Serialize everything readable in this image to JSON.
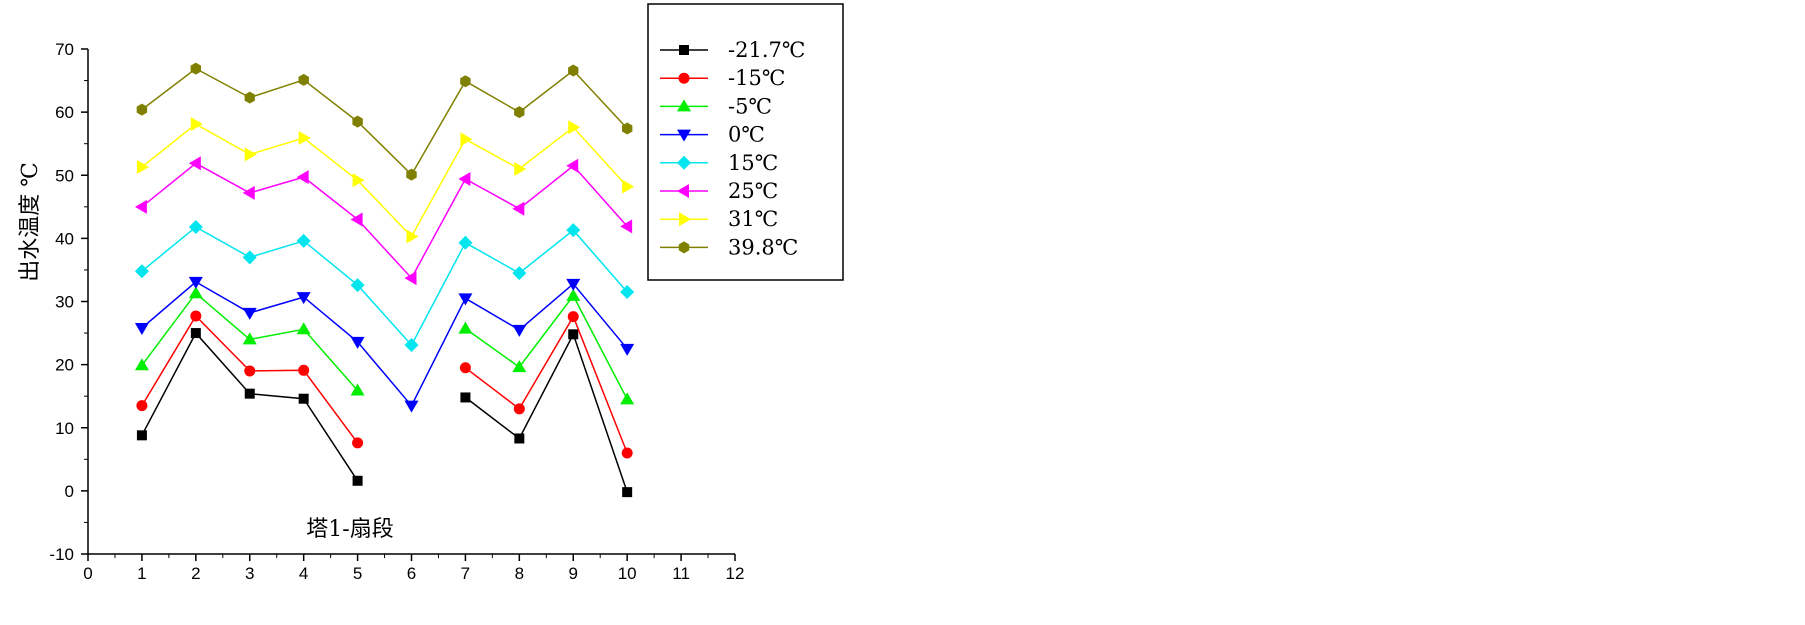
{
  "chart_data": {
    "type": "line",
    "xlabel": "塔1-扇段",
    "ylabel": "出水温度 ℃",
    "xlim": [
      0,
      12
    ],
    "ylim": [
      -10,
      70
    ],
    "x_ticks": [
      "0",
      "1",
      "2",
      "3",
      "4",
      "5",
      "6",
      "7",
      "8",
      "9",
      "10",
      "11",
      "12"
    ],
    "y_ticks": [
      "-10",
      "0",
      "10",
      "20",
      "30",
      "40",
      "50",
      "60",
      "70"
    ],
    "grid": false,
    "legend_position": "top-right",
    "series": [
      {
        "name": "-21.7℃",
        "color": "#000000",
        "marker": "square",
        "x": [
          1,
          2,
          3,
          4,
          5,
          7,
          8,
          9,
          10
        ],
        "values": [
          8.8,
          25.0,
          15.4,
          14.6,
          1.6,
          14.8,
          8.3,
          24.8,
          -0.2
        ],
        "segments": [
          [
            0,
            4
          ],
          [
            5,
            8
          ]
        ]
      },
      {
        "name": "-15℃",
        "color": "#ff0000",
        "marker": "circle",
        "x": [
          1,
          2,
          3,
          4,
          5,
          7,
          8,
          9,
          10
        ],
        "values": [
          13.5,
          27.7,
          19.0,
          19.1,
          7.6,
          19.5,
          13.0,
          27.6,
          6.0
        ],
        "segments": [
          [
            0,
            4
          ],
          [
            5,
            8
          ]
        ]
      },
      {
        "name": "-5℃",
        "color": "#00ee00",
        "marker": "triangle-up",
        "x": [
          1,
          2,
          3,
          4,
          5,
          7,
          8,
          9,
          10
        ],
        "values": [
          19.9,
          31.3,
          24.0,
          25.6,
          15.9,
          25.7,
          19.6,
          30.9,
          14.5
        ],
        "segments": [
          [
            0,
            4
          ],
          [
            5,
            8
          ]
        ]
      },
      {
        "name": "0℃",
        "color": "#0000ff",
        "marker": "triangle-down",
        "x": [
          1,
          2,
          3,
          4,
          5,
          6,
          7,
          8,
          9,
          10
        ],
        "values": [
          25.8,
          33.1,
          28.2,
          30.7,
          23.6,
          13.5,
          30.5,
          25.5,
          32.8,
          22.5
        ],
        "segments": [
          [
            0,
            9
          ]
        ]
      },
      {
        "name": "15℃",
        "color": "#00e5ee",
        "marker": "diamond",
        "x": [
          1,
          2,
          3,
          4,
          5,
          6,
          7,
          8,
          9,
          10
        ],
        "values": [
          34.8,
          41.8,
          37.0,
          39.6,
          32.6,
          23.1,
          39.3,
          34.5,
          41.3,
          31.5
        ],
        "segments": [
          [
            0,
            9
          ]
        ]
      },
      {
        "name": "25℃",
        "color": "#ff00ff",
        "marker": "triangle-left",
        "x": [
          1,
          2,
          3,
          4,
          5,
          6,
          7,
          8,
          9,
          10
        ],
        "values": [
          45.0,
          51.9,
          47.2,
          49.7,
          43.0,
          33.7,
          49.4,
          44.7,
          51.5,
          41.9
        ],
        "segments": [
          [
            0,
            9
          ]
        ]
      },
      {
        "name": "31℃",
        "color": "#ffff00",
        "marker": "triangle-right",
        "x": [
          1,
          2,
          3,
          4,
          5,
          6,
          7,
          8,
          9,
          10
        ],
        "values": [
          51.3,
          58.1,
          53.3,
          55.9,
          49.2,
          40.3,
          55.7,
          51.0,
          57.6,
          48.2
        ],
        "segments": [
          [
            0,
            9
          ]
        ]
      },
      {
        "name": "39.8℃",
        "color": "#808000",
        "marker": "hexagon",
        "x": [
          1,
          2,
          3,
          4,
          5,
          6,
          7,
          8,
          9,
          10
        ],
        "values": [
          60.4,
          66.9,
          62.3,
          65.1,
          58.5,
          50.1,
          64.9,
          60.0,
          66.6,
          57.4
        ],
        "segments": [
          [
            0,
            9
          ]
        ]
      }
    ],
    "legend_labels": [
      "-21.7℃",
      "-15℃",
      "-5℃",
      "0℃",
      "15℃",
      "25℃",
      "31℃",
      "39.8℃"
    ]
  }
}
